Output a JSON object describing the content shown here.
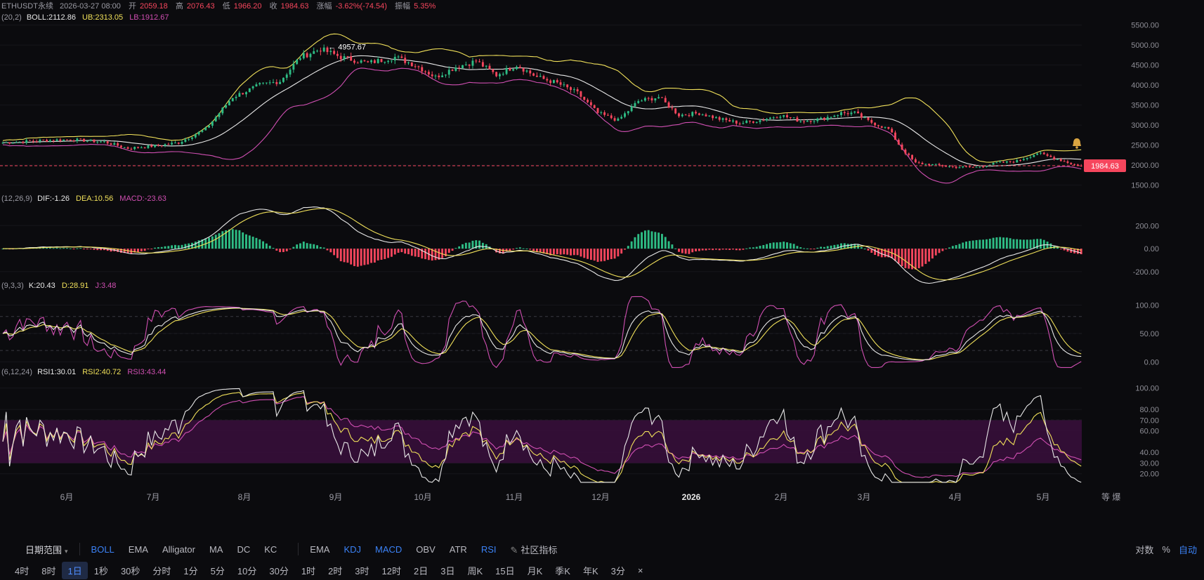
{
  "header": {
    "symbol": "ETHUSDT永续",
    "date": "2026-03-27 08:00",
    "open_label": "开",
    "open": "2059.18",
    "high_label": "高",
    "high": "2076.43",
    "low_label": "低",
    "low": "1966.20",
    "close_label": "收",
    "close": "1984.63",
    "change_label": "涨幅",
    "change": "-3.62%(-74.54)",
    "amp_label": "振幅",
    "amp": "5.35%"
  },
  "boll_legend": {
    "prefix": "(20,2)",
    "boll": "BOLL:2112.86",
    "ub": "UB:2313.05",
    "lb": "LB:1912.67"
  },
  "macd_legend": {
    "prefix": "(12,26,9)",
    "dif": "DIF:-1.26",
    "dea": "DEA:10.56",
    "macd": "MACD:-23.63"
  },
  "kdj_legend": {
    "prefix": "(9,3,3)",
    "k": "K:20.43",
    "d": "D:28.91",
    "j": "J:3.48"
  },
  "rsi_legend": {
    "prefix": "(6,12,24)",
    "rsi1": "RSI1:30.01",
    "rsi2": "RSI2:40.72",
    "rsi3": "RSI3:43.44"
  },
  "price_label": "1984.63",
  "peak_label": "4957.67",
  "colors": {
    "up": "#2ebd85",
    "down": "#f6465d",
    "boll_mid": "#e8e8e8",
    "ub": "#f0e05a",
    "lb": "#d04fb2",
    "bg": "#0b0b0e"
  },
  "chart_data": {
    "type": "candlestick",
    "title": "",
    "price_axis": {
      "range": [
        1300,
        5600
      ],
      "ticks": [
        "5500.00",
        "5000.00",
        "4500.00",
        "4000.00",
        "3500.00",
        "3000.00",
        "2500.00",
        "2000.00",
        "1500.00"
      ]
    },
    "macd_axis": {
      "range": [
        -280,
        330
      ],
      "ticks": [
        "200.00",
        "0.00",
        "-200.00"
      ]
    },
    "kdj_axis": {
      "range": [
        -12,
        118
      ],
      "ticks": [
        "100.00",
        "50.00",
        "0.00"
      ]
    },
    "rsi_axis": {
      "range": [
        10,
        105
      ],
      "ticks": [
        "100.00",
        "80.00",
        "70.00",
        "60.00",
        "40.00",
        "30.00",
        "20.00"
      ]
    },
    "x_axis_labels": [
      "6月",
      "7月",
      "8月",
      "9月",
      "10月",
      "11月",
      "12月",
      "2026",
      "2月",
      "3月",
      "4月",
      "5月"
    ],
    "price_anchors": [
      [
        0,
        2560
      ],
      [
        10,
        2610
      ],
      [
        20,
        2640
      ],
      [
        30,
        2580
      ],
      [
        37,
        2420
      ],
      [
        45,
        2480
      ],
      [
        52,
        2560
      ],
      [
        60,
        2900
      ],
      [
        68,
        3700
      ],
      [
        76,
        4000
      ],
      [
        82,
        4100
      ],
      [
        88,
        4700
      ],
      [
        94,
        4900
      ],
      [
        100,
        4700
      ],
      [
        108,
        4550
      ],
      [
        116,
        4700
      ],
      [
        122,
        4500
      ],
      [
        128,
        4200
      ],
      [
        134,
        4450
      ],
      [
        140,
        4600
      ],
      [
        146,
        4250
      ],
      [
        152,
        4500
      ],
      [
        158,
        4200
      ],
      [
        164,
        4050
      ],
      [
        170,
        3800
      ],
      [
        176,
        3300
      ],
      [
        182,
        3120
      ],
      [
        188,
        3600
      ],
      [
        194,
        3700
      ],
      [
        200,
        3250
      ],
      [
        206,
        3300
      ],
      [
        212,
        3150
      ],
      [
        218,
        3050
      ],
      [
        224,
        3120
      ],
      [
        230,
        3250
      ],
      [
        236,
        3100
      ],
      [
        242,
        3150
      ],
      [
        248,
        3300
      ],
      [
        252,
        3300
      ],
      [
        256,
        3100
      ],
      [
        262,
        2900
      ],
      [
        266,
        2400
      ],
      [
        270,
        2050
      ],
      [
        276,
        2000
      ],
      [
        282,
        1950
      ],
      [
        288,
        1950
      ],
      [
        294,
        2050
      ],
      [
        300,
        2100
      ],
      [
        306,
        2300
      ],
      [
        312,
        2150
      ],
      [
        318,
        1984
      ]
    ],
    "boll": {
      "ub": "UB:2313.05",
      "mid": "BOLL:2112.86",
      "lb": "LB:1912.67"
    },
    "last_price": 1984.63,
    "peak": 4957.67
  },
  "toolbar": {
    "date_range": "日期范围",
    "main_indicators": [
      "BOLL",
      "EMA",
      "Alligator",
      "MA",
      "DC",
      "KC"
    ],
    "sub_indicators": [
      "EMA",
      "KDJ",
      "MACD",
      "OBV",
      "ATR",
      "RSI"
    ],
    "community": "社区指标",
    "scale_log": "对数",
    "scale_pct": "%",
    "scale_auto": "自动",
    "timeframes": [
      "4时",
      "8时",
      "1日",
      "1秒",
      "30秒",
      "分时",
      "1分",
      "5分",
      "10分",
      "30分",
      "1时",
      "2时",
      "3时",
      "12时",
      "2日",
      "3日",
      "周K",
      "15日",
      "月K",
      "季K",
      "年K",
      "3分"
    ],
    "close": "×"
  }
}
